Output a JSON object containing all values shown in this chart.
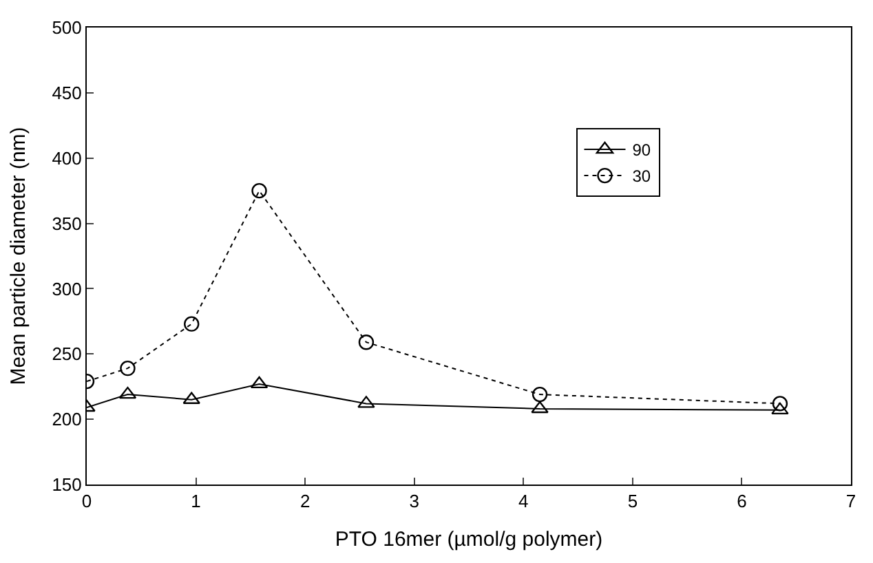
{
  "chart_data": {
    "type": "line",
    "xlabel": "PTO 16mer (µmol/g polymer)",
    "ylabel": "Mean particle diameter (nm)",
    "x": [
      0,
      0.375,
      0.96,
      1.58,
      2.56,
      4.15,
      6.35
    ],
    "series": [
      {
        "name": "90",
        "color": "#000000",
        "marker": "triangle",
        "line_style": "solid",
        "values": [
          209,
          219,
          215,
          227,
          212,
          208,
          207
        ]
      },
      {
        "name": "30",
        "color": "#000000",
        "marker": "circle",
        "line_style": "dashed",
        "values": [
          229,
          239,
          273,
          375,
          259,
          219,
          212
        ]
      }
    ],
    "xlim": [
      0,
      7
    ],
    "xticks": [
      0,
      1,
      2,
      3,
      4,
      5,
      6,
      7
    ],
    "ylim": [
      150,
      500
    ],
    "yticks": [
      150,
      200,
      250,
      300,
      350,
      400,
      450,
      500
    ],
    "legend": "top right"
  }
}
